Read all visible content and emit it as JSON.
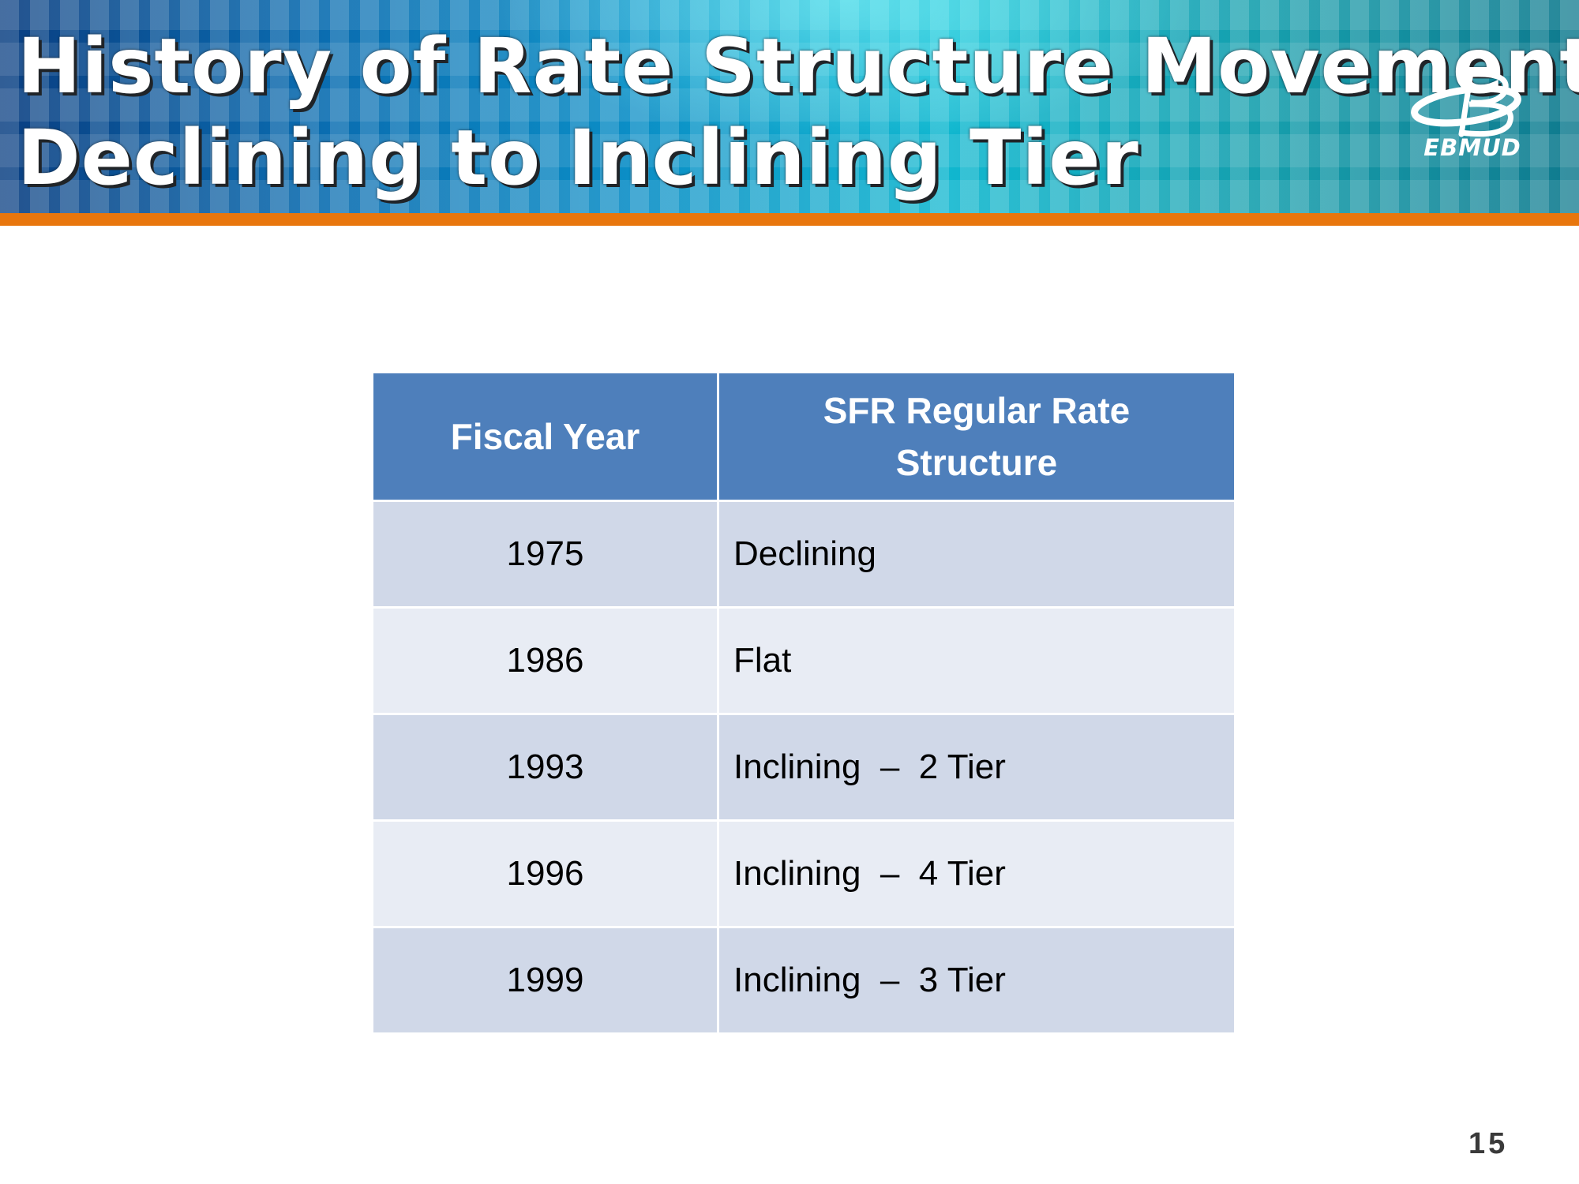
{
  "slide": {
    "title_line1": "History of Rate Structure Movement",
    "title_line2": "Declining to Inclining Tier",
    "logo_text": "EBMUD",
    "page_number": "15"
  },
  "table": {
    "headers": [
      "Fiscal Year",
      "SFR Regular Rate Structure"
    ],
    "rows": [
      {
        "year": "1975",
        "structure": "Declining"
      },
      {
        "year": "1986",
        "structure": "Flat"
      },
      {
        "year": "1993",
        "structure": "Inclining  –  2 Tier"
      },
      {
        "year": "1996",
        "structure": "Inclining  –  4 Tier"
      },
      {
        "year": "1999",
        "structure": "Inclining  –  3 Tier"
      }
    ]
  },
  "colors": {
    "banner_accent": "#e8760d",
    "header_fill": "#4e7fbb",
    "row_dark": "#d0d8e8",
    "row_light": "#e8ecf4"
  }
}
